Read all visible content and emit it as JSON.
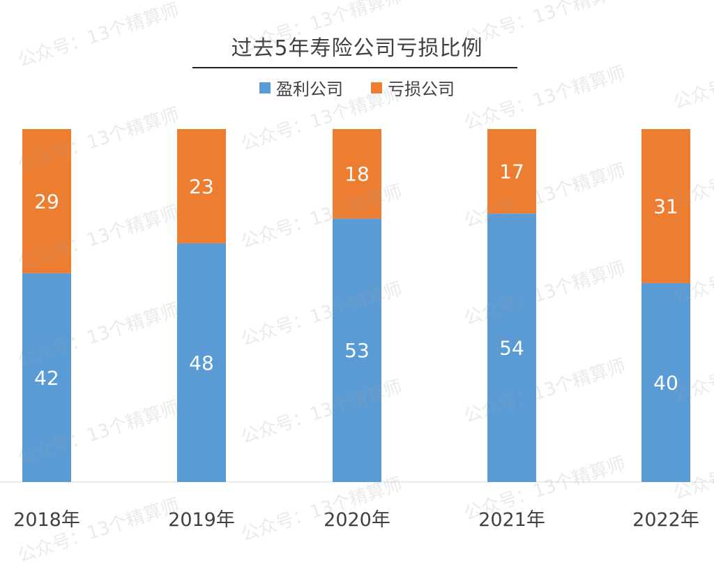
{
  "chart_data": {
    "type": "bar",
    "stacked": true,
    "title": "过去5年寿险公司亏损比例",
    "categories": [
      "2018年",
      "2019年",
      "2020年",
      "2021年",
      "2022年"
    ],
    "series": [
      {
        "name": "盈利公司",
        "color": "#5b9bd5",
        "values": [
          42,
          48,
          53,
          54,
          40
        ]
      },
      {
        "name": "亏损公司",
        "color": "#ed7d31",
        "values": [
          29,
          23,
          18,
          17,
          31
        ]
      }
    ],
    "legend_position": "top",
    "grid": false,
    "data_labels": true
  },
  "watermark_text": "公众号：13个精算师"
}
